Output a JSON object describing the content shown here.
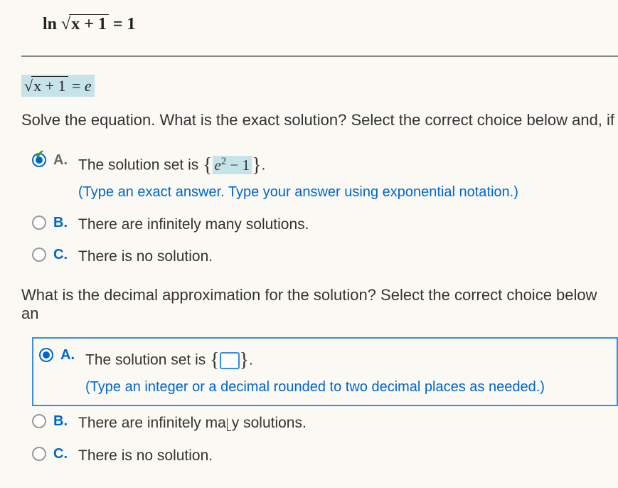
{
  "top_equation": {
    "prefix": "ln ",
    "radical": "x + 1",
    "suffix": " = 1"
  },
  "highlighted_equation": {
    "radical": "x + 1",
    "suffix": " = e",
    "e_italic": "e"
  },
  "question1": "Solve the equation. What is the exact solution? Select the correct choice below and, if ",
  "choices1": {
    "a": {
      "letter": "A.",
      "text_before": "The solution set is ",
      "answer_sup": "2",
      "answer_base": "e",
      "answer_rest": " − 1",
      "text_after": ".",
      "hint": "(Type an exact answer. Type your answer using exponential notation.)"
    },
    "b": {
      "letter": "B.",
      "text": "There are infinitely many solutions."
    },
    "c": {
      "letter": "C.",
      "text": "There is no solution."
    }
  },
  "question2": "What is the decimal approximation for the solution? Select the correct choice below an",
  "choices2": {
    "a": {
      "letter": "A.",
      "text_before": "The solution set is ",
      "text_after": ".",
      "hint": "(Type an integer or a decimal rounded to two decimal places as needed.)"
    },
    "b": {
      "letter": "B.",
      "text_before": "There are infinitely ma",
      "text_after": "y solutions."
    },
    "c": {
      "letter": "C.",
      "text": "There is no solution."
    }
  }
}
